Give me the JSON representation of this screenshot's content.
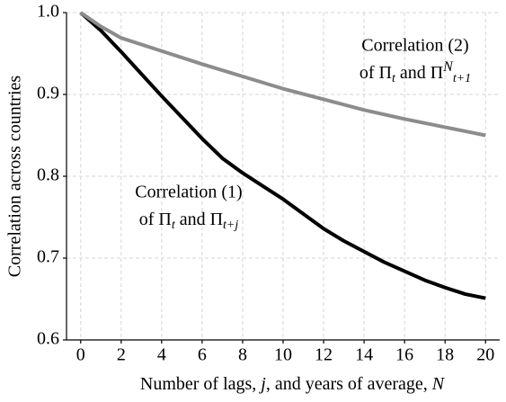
{
  "chart_data": {
    "type": "line",
    "x_label": [
      "Number of lags, ",
      "j",
      ", and years of average, ",
      "N"
    ],
    "y_label": "Correlation across countries",
    "xlim": [
      -0.7,
      20.7
    ],
    "ylim": [
      0.6,
      1.0
    ],
    "xticks": [
      0,
      2,
      4,
      6,
      8,
      10,
      12,
      14,
      16,
      18,
      20
    ],
    "yticks": [
      {
        "value": 1,
        "label": "1.0"
      },
      0.9,
      0.8,
      0.7,
      0.6
    ],
    "grid": true,
    "series": [
      {
        "color": "#000000",
        "x": [
          0,
          1,
          2,
          3,
          4,
          5,
          6,
          7,
          8,
          9,
          10,
          11,
          12,
          13,
          14,
          15,
          16,
          17,
          18,
          19,
          20
        ],
        "values": [
          1.0,
          0.978,
          0.952,
          0.925,
          0.898,
          0.872,
          0.846,
          0.822,
          0.804,
          0.788,
          0.772,
          0.754,
          0.736,
          0.721,
          0.708,
          0.695,
          0.684,
          0.673,
          0.664,
          0.656,
          0.651
        ]
      },
      {
        "color": "#8c8c8c",
        "x": [
          0,
          1,
          2,
          4,
          6,
          8,
          10,
          12,
          14,
          16,
          18,
          20
        ],
        "values": [
          1.0,
          0.983,
          0.969,
          0.953,
          0.937,
          0.922,
          0.907,
          0.894,
          0.881,
          0.87,
          0.86,
          0.85
        ]
      }
    ],
    "annotations": [
      {
        "line1": "Correlation (1)",
        "line2": [
          "of Π",
          "t",
          " and Π",
          "t+j"
        ]
      },
      {
        "line1": "Correlation (2)",
        "line2": [
          "of Π",
          "t",
          " and Π",
          "N",
          "t+1"
        ]
      }
    ]
  }
}
